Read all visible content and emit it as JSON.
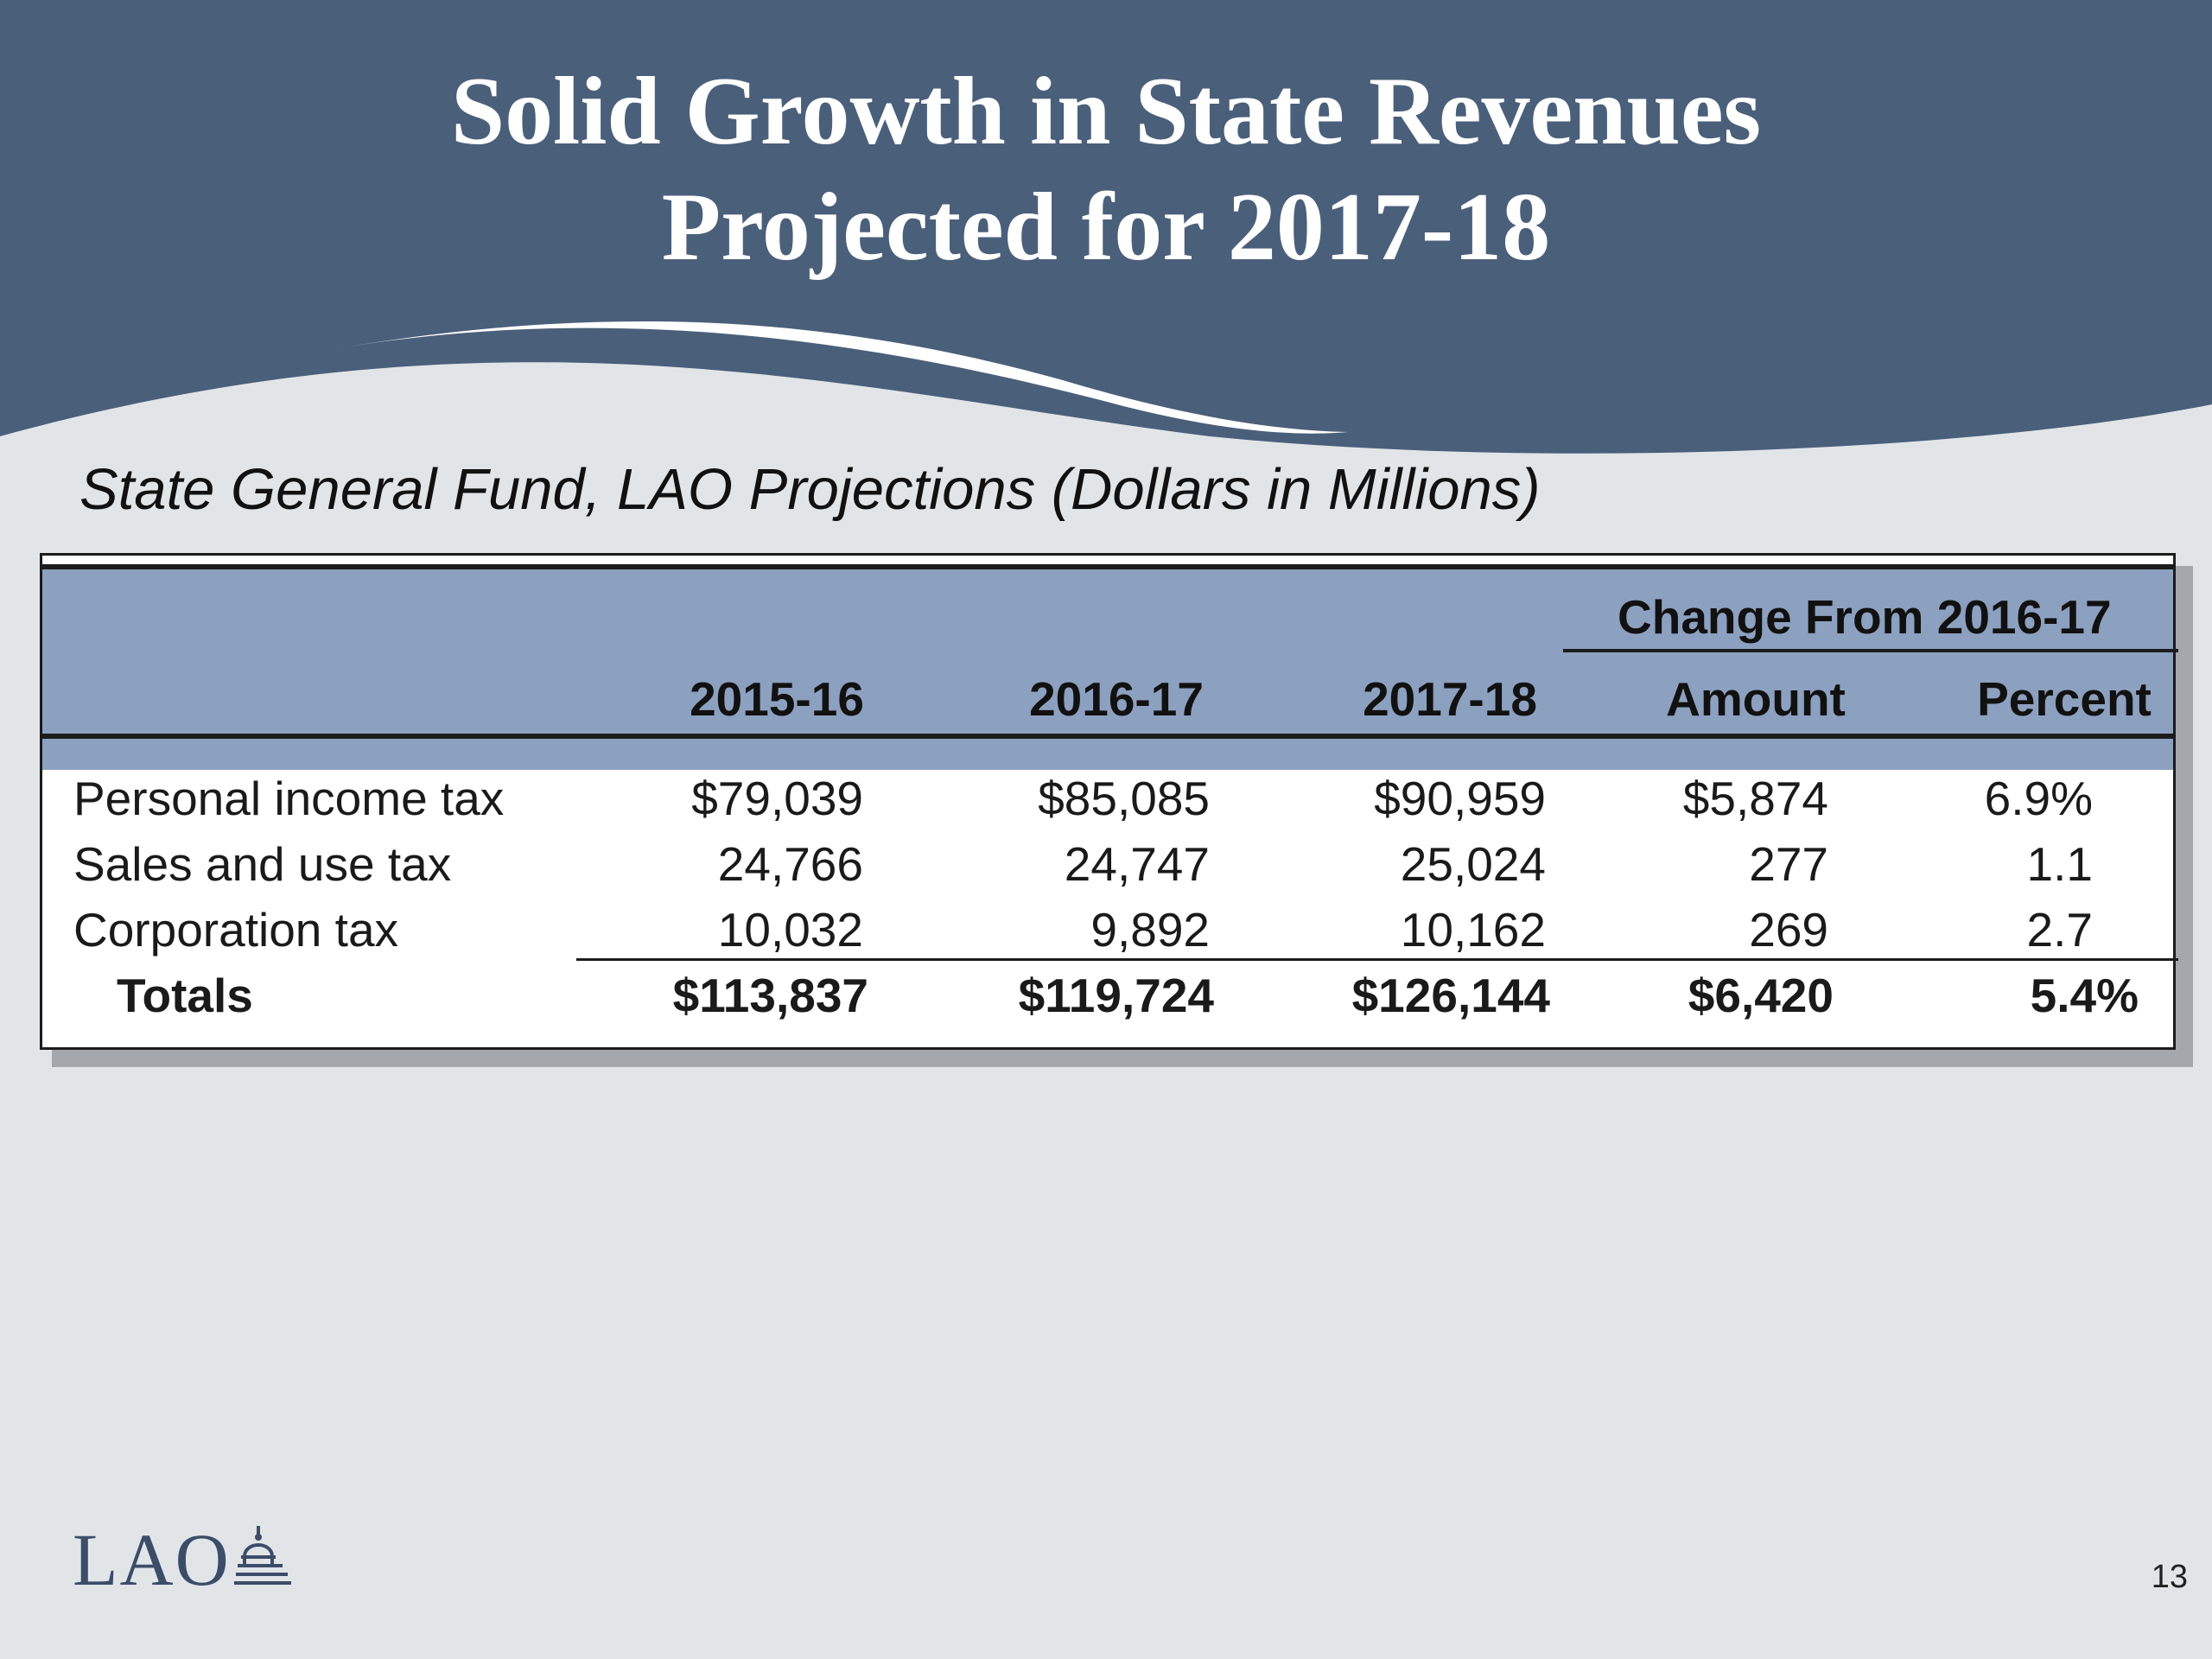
{
  "slide": {
    "title_line1": "Solid Growth in State Revenues",
    "title_line2": "Projected for 2017-18",
    "subtitle": "State General Fund, LAO Projections (Dollars in Millions)",
    "page_number": "13",
    "logo_text": "LAO",
    "logo_icon": "capitol-dome-icon"
  },
  "table": {
    "group_header": "Change From 2016-17",
    "columns": [
      "2015-16",
      "2016-17",
      "2017-18",
      "Amount",
      "Percent"
    ],
    "rows": [
      {
        "label": "Personal income tax",
        "values": [
          "$79,039",
          "$85,085",
          "$90,959",
          "$5,874",
          "6.9%"
        ]
      },
      {
        "label": "Sales and use tax",
        "values": [
          "24,766",
          "24,747",
          "25,024",
          "277",
          "1.1"
        ]
      },
      {
        "label": "Corporation tax",
        "values": [
          "10,032",
          "9,892",
          "10,162",
          "269",
          "2.7"
        ]
      }
    ],
    "totals": {
      "label": "Totals",
      "values": [
        "$113,837",
        "$119,724",
        "$126,144",
        "$6,420",
        "5.4%"
      ]
    }
  },
  "colors": {
    "header_band": "#4a5f7a",
    "table_header": "#8ca0bf",
    "background": "#e1e5e8",
    "logo": "#3c4d68"
  }
}
